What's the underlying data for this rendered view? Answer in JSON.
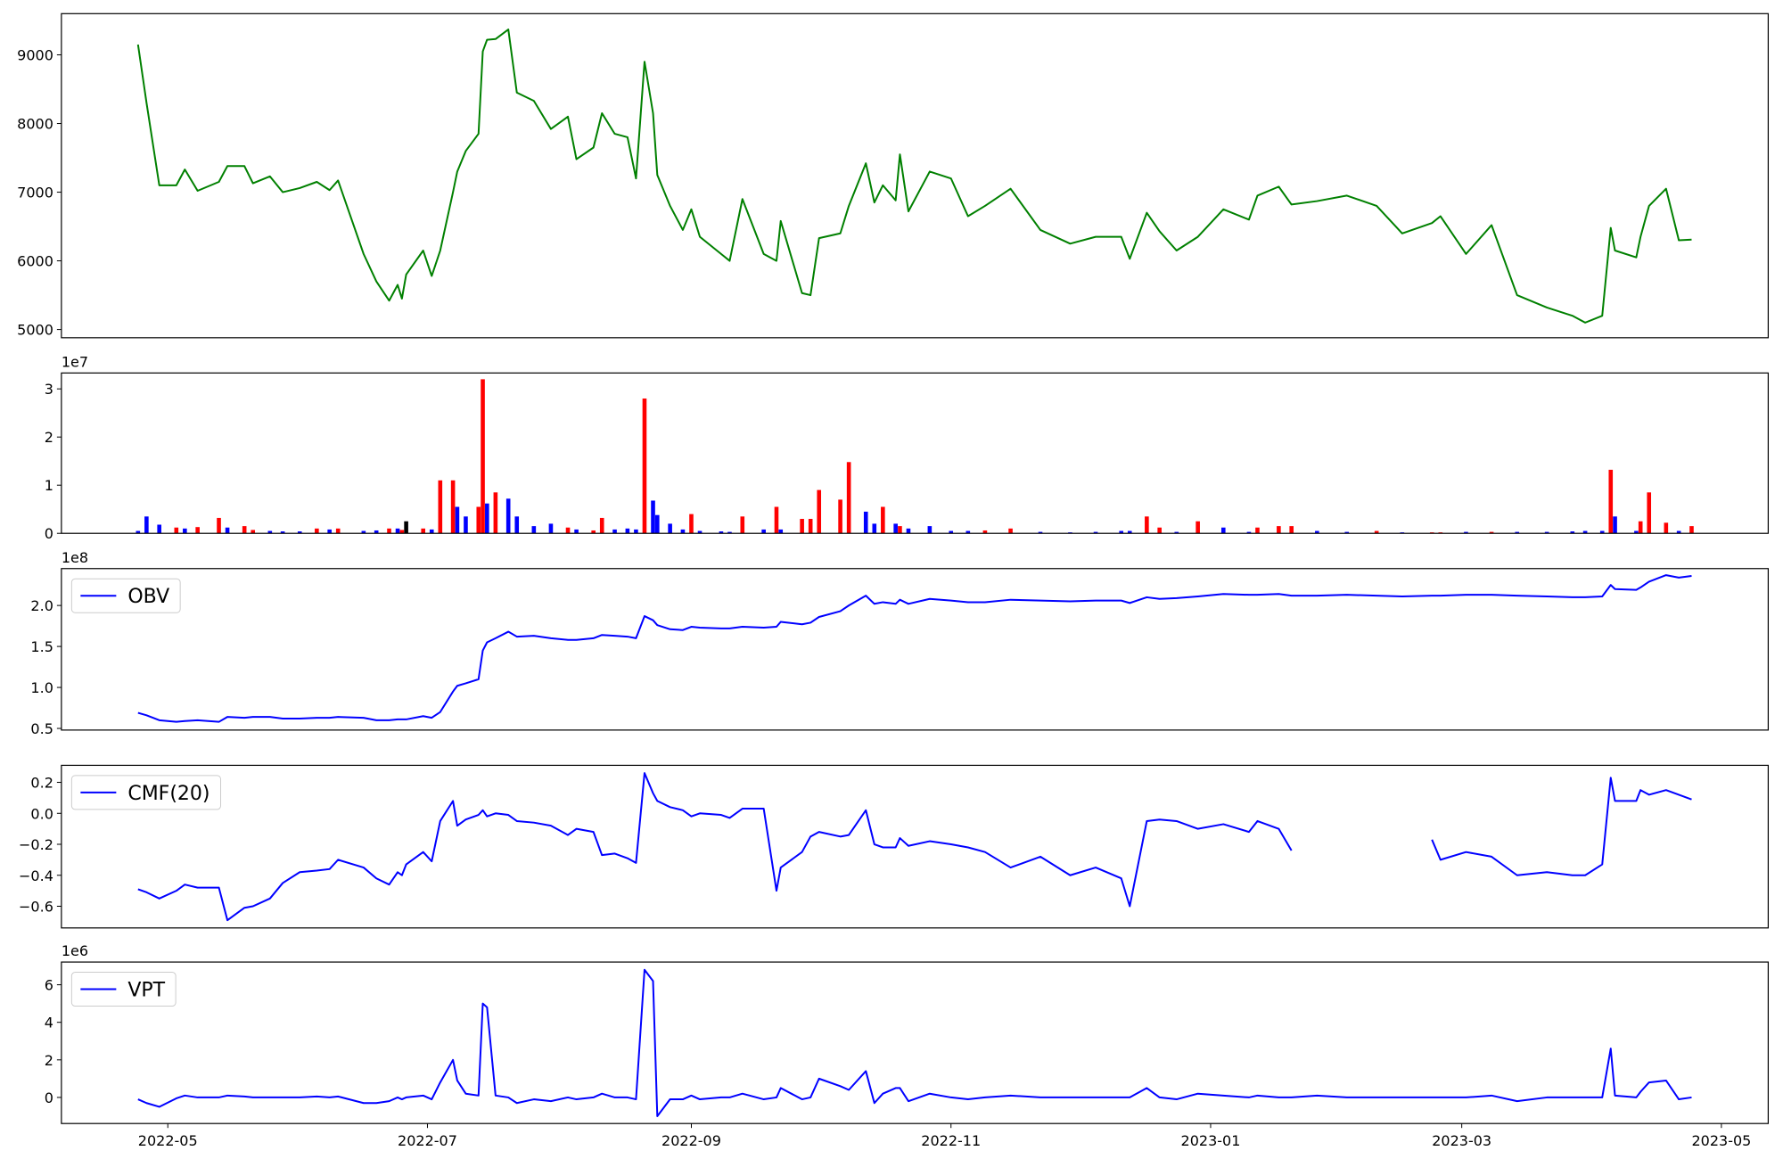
{
  "chart_data": {
    "x": [
      "2022-04-24",
      "2022-04-26",
      "2022-04-29",
      "2022-05-03",
      "2022-05-05",
      "2022-05-08",
      "2022-05-13",
      "2022-05-15",
      "2022-05-19",
      "2022-05-21",
      "2022-05-25",
      "2022-05-28",
      "2022-06-01",
      "2022-06-05",
      "2022-06-08",
      "2022-06-10",
      "2022-06-16",
      "2022-06-19",
      "2022-06-22",
      "2022-06-24",
      "2022-06-25",
      "2022-06-26",
      "2022-06-30",
      "2022-07-02",
      "2022-07-04",
      "2022-07-07",
      "2022-07-08",
      "2022-07-10",
      "2022-07-13",
      "2022-07-14",
      "2022-07-15",
      "2022-07-17",
      "2022-07-20",
      "2022-07-22",
      "2022-07-26",
      "2022-07-30",
      "2022-08-03",
      "2022-08-05",
      "2022-08-09",
      "2022-08-11",
      "2022-08-14",
      "2022-08-17",
      "2022-08-19",
      "2022-08-21",
      "2022-08-23",
      "2022-08-24",
      "2022-08-27",
      "2022-08-30",
      "2022-09-01",
      "2022-09-03",
      "2022-09-08",
      "2022-09-10",
      "2022-09-13",
      "2022-09-18",
      "2022-09-21",
      "2022-09-22",
      "2022-09-27",
      "2022-09-29",
      "2022-10-01",
      "2022-10-06",
      "2022-10-08",
      "2022-10-12",
      "2022-10-14",
      "2022-10-16",
      "2022-10-19",
      "2022-10-20",
      "2022-10-22",
      "2022-10-27",
      "2022-11-01",
      "2022-11-05",
      "2022-11-09",
      "2022-11-15",
      "2022-11-22",
      "2022-11-29",
      "2022-12-05",
      "2022-12-11",
      "2022-12-13",
      "2022-12-17",
      "2022-12-20",
      "2022-12-24",
      "2022-12-29",
      "2023-01-04",
      "2023-01-10",
      "2023-01-12",
      "2023-01-17",
      "2023-01-20",
      "2023-01-26",
      "2023-02-02",
      "2023-02-09",
      "2023-02-15",
      "2023-02-22",
      "2023-02-24",
      "2023-03-02",
      "2023-03-08",
      "2023-03-14",
      "2023-03-21",
      "2023-03-27",
      "2023-03-30",
      "2023-04-03",
      "2023-04-05",
      "2023-04-06",
      "2023-04-11",
      "2023-04-12",
      "2023-04-14",
      "2023-04-18",
      "2023-04-21",
      "2023-04-24"
    ],
    "xlim": [
      "2022-04-06",
      "2023-05-12"
    ],
    "xticks": [
      "2022-05",
      "2022-07",
      "2022-09",
      "2022-11",
      "2023-01",
      "2023-03",
      "2023-05"
    ],
    "panels": [
      {
        "type": "line",
        "ylim": [
          4880,
          9600
        ],
        "yticks": [
          5000,
          6000,
          7000,
          8000,
          9000
        ],
        "series": [
          {
            "color": "green",
            "values": [
              9150,
              8300,
              7100,
              7100,
              7330,
              7020,
              7150,
              7380,
              7380,
              7130,
              7230,
              7000,
              7060,
              7150,
              7030,
              7170,
              6100,
              5700,
              5420,
              5650,
              5450,
              5800,
              6150,
              5780,
              6150,
              7000,
              7300,
              7600,
              7850,
              9050,
              9220,
              9230,
              9370,
              8450,
              8330,
              7920,
              8100,
              7480,
              7650,
              8150,
              7850,
              7800,
              7200,
              8900,
              8150,
              7250,
              6800,
              6450,
              6750,
              6350,
              6100,
              6000,
              6900,
              6100,
              6000,
              6580,
              5530,
              5500,
              6330,
              6400,
              6800,
              7420,
              6850,
              7100,
              6880,
              7550,
              6720,
              7300,
              7200,
              6650,
              6800,
              7050,
              6450,
              6250,
              6350,
              6350,
              6030,
              6700,
              6430,
              6150,
              6350,
              6750,
              6600,
              6950,
              7080,
              6820,
              6870,
              6950,
              6800,
              6400,
              6550,
              6650,
              6100,
              6520,
              5500,
              5320,
              5200,
              5100,
              5200,
              6480,
              6150,
              6050,
              6350,
              6800,
              7050,
              6300,
              6310
            ]
          }
        ]
      },
      {
        "type": "bar",
        "ylim": [
          0,
          3.33
        ],
        "yticks": [
          0,
          1,
          2,
          3
        ],
        "offset_label": "1e7",
        "values": [
          0.05,
          0.35,
          0.18,
          0.12,
          0.1,
          0.13,
          0.32,
          0.12,
          0.15,
          0.07,
          0.05,
          0.04,
          0.04,
          0.1,
          0.08,
          0.1,
          0.05,
          0.06,
          0.1,
          0.1,
          0.07,
          0.25,
          0.1,
          0.08,
          1.1,
          1.1,
          0.55,
          0.35,
          0.55,
          3.2,
          0.62,
          0.85,
          0.72,
          0.35,
          0.15,
          0.2,
          0.12,
          0.08,
          0.06,
          0.32,
          0.08,
          0.1,
          0.08,
          2.8,
          0.68,
          0.38,
          0.2,
          0.08,
          0.4,
          0.05,
          0.04,
          0.03,
          0.35,
          0.08,
          0.55,
          0.08,
          0.3,
          0.3,
          0.9,
          0.7,
          1.48,
          0.45,
          0.2,
          0.55,
          0.2,
          0.15,
          0.1,
          0.15,
          0.05,
          0.05,
          0.06,
          0.1,
          0.03,
          0.02,
          0.03,
          0.05,
          0.05,
          0.35,
          0.12,
          0.03,
          0.25,
          0.12,
          0.03,
          0.12,
          0.15,
          0.15,
          0.05,
          0.03,
          0.05,
          0.02,
          0.02,
          0.02,
          0.03,
          0.03,
          0.03,
          0.03,
          0.04,
          0.05,
          0.05,
          1.32,
          0.35,
          0.05,
          0.25,
          0.85,
          0.22,
          0.05,
          0.15
        ],
        "colors": [
          "blue",
          "blue",
          "blue",
          "red",
          "blue",
          "red",
          "red",
          "blue",
          "red",
          "red",
          "blue",
          "blue",
          "blue",
          "red",
          "blue",
          "red",
          "blue",
          "blue",
          "red",
          "blue",
          "red",
          "black",
          "red",
          "blue",
          "red",
          "red",
          "blue",
          "blue",
          "red",
          "red",
          "blue",
          "red",
          "blue",
          "blue",
          "blue",
          "blue",
          "red",
          "blue",
          "red",
          "red",
          "blue",
          "blue",
          "blue",
          "red",
          "blue",
          "blue",
          "blue",
          "blue",
          "red",
          "blue",
          "blue",
          "blue",
          "red",
          "blue",
          "red",
          "blue",
          "red",
          "red",
          "red",
          "red",
          "red",
          "blue",
          "blue",
          "red",
          "blue",
          "red",
          "blue",
          "blue",
          "blue",
          "blue",
          "red",
          "red",
          "blue",
          "blue",
          "blue",
          "blue",
          "blue",
          "red",
          "red",
          "blue",
          "red",
          "blue",
          "blue",
          "red",
          "red",
          "red",
          "blue",
          "blue",
          "red",
          "blue",
          "red",
          "red",
          "blue",
          "red",
          "blue",
          "blue",
          "blue",
          "blue",
          "blue",
          "red",
          "blue",
          "blue",
          "red",
          "red",
          "red",
          "blue",
          "red"
        ]
      },
      {
        "type": "line",
        "ylim": [
          0.48,
          2.45
        ],
        "yticks": [
          0.5,
          {
            "value": 1,
            "label": "1.0"
          },
          1.5,
          {
            "value": 2,
            "label": "2.0"
          }
        ],
        "offset_label": "1e8",
        "legend": "upper left",
        "series": [
          {
            "name": "OBV",
            "color": "blue",
            "values": [
              0.69,
              0.66,
              0.6,
              0.58,
              0.59,
              0.6,
              0.58,
              0.64,
              0.63,
              0.64,
              0.64,
              0.62,
              0.62,
              0.63,
              0.63,
              0.64,
              0.63,
              0.6,
              0.6,
              0.61,
              0.61,
              0.61,
              0.65,
              0.63,
              0.7,
              0.95,
              1.02,
              1.05,
              1.1,
              1.45,
              1.55,
              1.6,
              1.68,
              1.62,
              1.63,
              1.6,
              1.58,
              1.58,
              1.6,
              1.64,
              1.63,
              1.62,
              1.6,
              1.87,
              1.82,
              1.76,
              1.71,
              1.7,
              1.74,
              1.73,
              1.72,
              1.72,
              1.74,
              1.73,
              1.74,
              1.8,
              1.77,
              1.79,
              1.86,
              1.93,
              2.0,
              2.12,
              2.02,
              2.04,
              2.02,
              2.07,
              2.02,
              2.08,
              2.06,
              2.04,
              2.04,
              2.07,
              2.06,
              2.05,
              2.06,
              2.06,
              2.03,
              2.1,
              2.08,
              2.09,
              2.11,
              2.14,
              2.13,
              2.13,
              2.14,
              2.12,
              2.12,
              2.13,
              2.12,
              2.11,
              2.12,
              2.12,
              2.13,
              2.13,
              2.12,
              2.11,
              2.1,
              2.1,
              2.11,
              2.25,
              2.2,
              2.19,
              2.22,
              2.29,
              2.37,
              2.34,
              2.36
            ]
          }
        ]
      },
      {
        "type": "line",
        "ylim": [
          -0.74,
          0.31
        ],
        "yticks": [
          {
            "value": -0.6,
            "label": "−0.6"
          },
          {
            "value": -0.4,
            "label": "−0.4"
          },
          {
            "value": -0.2,
            "label": "−0.2"
          },
          {
            "value": 0,
            "label": "0.0"
          },
          0.2
        ],
        "legend": "upper left",
        "series": [
          {
            "name": "CMF(20)",
            "color": "blue",
            "values": [
              -0.49,
              -0.51,
              -0.55,
              -0.5,
              -0.46,
              -0.48,
              -0.48,
              -0.69,
              -0.61,
              -0.6,
              -0.55,
              -0.45,
              -0.38,
              -0.37,
              -0.36,
              -0.3,
              -0.35,
              -0.42,
              -0.46,
              -0.38,
              -0.4,
              -0.33,
              -0.25,
              -0.31,
              -0.05,
              0.08,
              -0.08,
              -0.04,
              -0.01,
              0.02,
              -0.02,
              0,
              -0.01,
              -0.05,
              -0.06,
              -0.08,
              -0.14,
              -0.1,
              -0.12,
              -0.27,
              -0.26,
              -0.29,
              -0.32,
              0.26,
              0.13,
              0.08,
              0.04,
              0.02,
              -0.02,
              0,
              -0.01,
              -0.03,
              0.03,
              0.03,
              -0.5,
              -0.35,
              -0.25,
              -0.15,
              -0.12,
              -0.15,
              -0.14,
              0.02,
              -0.2,
              -0.22,
              -0.22,
              -0.16,
              -0.21,
              -0.18,
              -0.2,
              -0.22,
              -0.25,
              -0.35,
              -0.28,
              -0.4,
              -0.35,
              -0.42,
              -0.6,
              -0.05,
              -0.04,
              -0.05,
              -0.1,
              -0.07,
              -0.12,
              -0.05,
              -0.1,
              -0.24,
              null,
              null,
              null,
              null,
              -0.17,
              -0.3,
              -0.25,
              -0.28,
              -0.4,
              -0.38,
              -0.4,
              -0.4,
              -0.33,
              0.23,
              0.08,
              0.08,
              0.15,
              0.12,
              0.15,
              0.12,
              0.09
            ]
          }
        ]
      },
      {
        "type": "line",
        "ylim": [
          -1.39,
          7.21
        ],
        "yticks": [
          0,
          2,
          4,
          6
        ],
        "offset_label": "1e6",
        "legend": "upper left",
        "show_dates": true,
        "series": [
          {
            "name": "VPT",
            "color": "blue",
            "values": [
              -0.1,
              -0.3,
              -0.5,
              -0.05,
              0.1,
              0,
              0,
              0.1,
              0.05,
              0,
              0,
              0,
              0,
              0.05,
              0,
              0.05,
              -0.3,
              -0.3,
              -0.2,
              0,
              -0.1,
              0,
              0.1,
              -0.1,
              0.8,
              2.0,
              0.9,
              0.2,
              0.1,
              5.0,
              4.8,
              0.1,
              0,
              -0.3,
              -0.1,
              -0.2,
              0,
              -0.1,
              0,
              0.2,
              0,
              0,
              -0.1,
              6.8,
              6.2,
              -1.0,
              -0.1,
              -0.1,
              0.1,
              -0.1,
              0,
              0,
              0.2,
              -0.1,
              0,
              0.5,
              -0.1,
              0,
              1.0,
              0.6,
              0.4,
              1.4,
              -0.3,
              0.2,
              0.5,
              0.5,
              -0.2,
              0.2,
              0,
              -0.1,
              0,
              0.1,
              0,
              0,
              0,
              0,
              0,
              0.5,
              0,
              -0.1,
              0.2,
              0.1,
              0,
              0.1,
              0,
              0,
              0.1,
              0,
              0,
              0,
              0,
              0,
              0,
              0.1,
              -0.2,
              0,
              0,
              0,
              0,
              2.6,
              0.1,
              0,
              0.3,
              0.8,
              0.9,
              -0.1,
              0
            ]
          }
        ]
      }
    ]
  }
}
